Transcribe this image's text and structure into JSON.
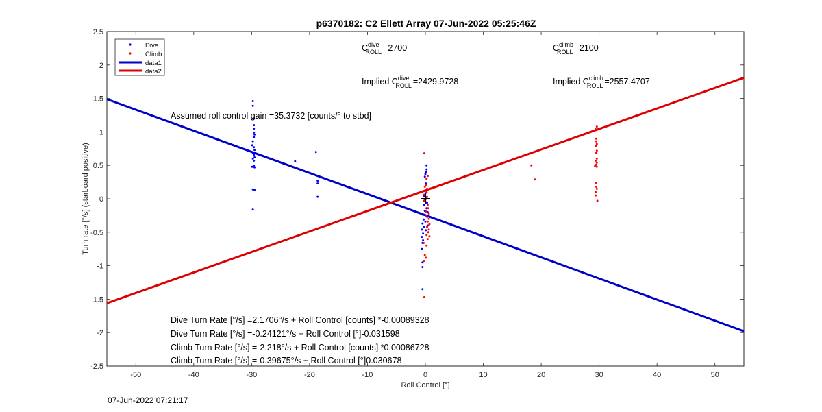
{
  "chart_data": {
    "type": "scatter",
    "title": "p6370182: C2 Ellett Array 07-Jun-2022 05:25:46Z",
    "xlabel": "Roll Control [°]",
    "ylabel": "Turn rate [°/s] (starboard positive)",
    "xlim": [
      -55,
      55
    ],
    "ylim": [
      -2.5,
      2.5
    ],
    "x_ticks": [
      -50,
      -40,
      -30,
      -20,
      -10,
      0,
      10,
      20,
      30,
      40,
      50
    ],
    "y_ticks": [
      -2.5,
      -2,
      -1.5,
      -1,
      -0.5,
      0,
      0.5,
      1,
      1.5,
      2,
      2.5
    ],
    "x_tick_labels": [
      "-50",
      "-40",
      "-30",
      "-20",
      "-10",
      "0",
      "10",
      "20",
      "30",
      "40",
      "50"
    ],
    "y_tick_labels": [
      "-2.5",
      "-2",
      "-1.5",
      "-1",
      "-0.5",
      "0",
      "0.5",
      "1",
      "1.5",
      "2",
      "2.5"
    ],
    "grid": false,
    "legend_placement": "top-left",
    "series": [
      {
        "name": "Dive",
        "kind": "points",
        "color": "#0000ff",
        "points": [
          [
            -29.8,
            1.46
          ],
          [
            -29.8,
            1.39
          ],
          [
            -29.6,
            1.2
          ],
          [
            -29.6,
            1.1
          ],
          [
            -29.6,
            1.05
          ],
          [
            -29.6,
            0.99
          ],
          [
            -29.5,
            0.96
          ],
          [
            -29.6,
            0.92
          ],
          [
            -29.8,
            0.86
          ],
          [
            -29.9,
            0.8
          ],
          [
            -29.6,
            0.77
          ],
          [
            -29.5,
            0.73
          ],
          [
            -29.8,
            0.69
          ],
          [
            -29.6,
            0.66
          ],
          [
            -29.5,
            0.62
          ],
          [
            -29.8,
            0.6
          ],
          [
            -29.6,
            0.57
          ],
          [
            -29.6,
            0.49
          ],
          [
            -29.9,
            0.48
          ],
          [
            -29.5,
            0.47
          ],
          [
            -29.8,
            0.14
          ],
          [
            -29.5,
            0.13
          ],
          [
            -29.8,
            -0.16
          ],
          [
            -22.5,
            0.56
          ],
          [
            -18.9,
            0.7
          ],
          [
            -18.6,
            0.27
          ],
          [
            -18.6,
            0.23
          ],
          [
            -18.6,
            0.03
          ],
          [
            0.2,
            0.5
          ],
          [
            0.2,
            0.44
          ],
          [
            0.1,
            0.4
          ],
          [
            0.0,
            0.37
          ],
          [
            -0.1,
            0.33
          ],
          [
            0.1,
            0.23
          ],
          [
            0.2,
            0.22
          ],
          [
            0.2,
            0.1
          ],
          [
            0.0,
            0.08
          ],
          [
            -0.2,
            0.04
          ],
          [
            0.1,
            0.02
          ],
          [
            0.2,
            0.0
          ],
          [
            -0.1,
            -0.02
          ],
          [
            0.1,
            -0.05
          ],
          [
            0.3,
            -0.06
          ],
          [
            -0.2,
            -0.09
          ],
          [
            0.2,
            -0.14
          ],
          [
            -0.1,
            -0.18
          ],
          [
            0.4,
            -0.2
          ],
          [
            -0.4,
            -0.24
          ],
          [
            0.3,
            -0.27
          ],
          [
            -0.3,
            -0.31
          ],
          [
            0.0,
            -0.34
          ],
          [
            -0.5,
            -0.37
          ],
          [
            0.4,
            -0.4
          ],
          [
            -0.2,
            -0.42
          ],
          [
            -0.6,
            -0.46
          ],
          [
            0.1,
            -0.47
          ],
          [
            -0.4,
            -0.52
          ],
          [
            -0.6,
            -0.57
          ],
          [
            -0.4,
            -0.62
          ],
          [
            -0.5,
            -0.66
          ],
          [
            -0.6,
            -0.75
          ],
          [
            -0.5,
            -0.95
          ],
          [
            -0.5,
            -1.02
          ],
          [
            -0.5,
            -1.35
          ]
        ]
      },
      {
        "name": "Climb",
        "kind": "points",
        "color": "#ff0000",
        "points": [
          [
            29.6,
            1.08
          ],
          [
            29.4,
            1.04
          ],
          [
            29.5,
            0.9
          ],
          [
            29.5,
            0.86
          ],
          [
            29.6,
            0.82
          ],
          [
            29.4,
            0.79
          ],
          [
            29.6,
            0.72
          ],
          [
            29.5,
            0.69
          ],
          [
            29.6,
            0.6
          ],
          [
            29.4,
            0.57
          ],
          [
            29.6,
            0.54
          ],
          [
            29.5,
            0.51
          ],
          [
            29.3,
            0.49
          ],
          [
            29.6,
            0.48
          ],
          [
            29.4,
            0.24
          ],
          [
            29.5,
            0.18
          ],
          [
            29.6,
            0.15
          ],
          [
            29.4,
            0.1
          ],
          [
            29.4,
            0.05
          ],
          [
            29.7,
            -0.03
          ],
          [
            18.3,
            0.5
          ],
          [
            18.9,
            0.29
          ],
          [
            -0.2,
            0.68
          ],
          [
            0.4,
            0.34
          ],
          [
            0.2,
            0.3
          ],
          [
            0.1,
            0.21
          ],
          [
            -0.1,
            0.18
          ],
          [
            0.3,
            0.15
          ],
          [
            0.2,
            0.1
          ],
          [
            -0.3,
            0.06
          ],
          [
            0.3,
            0.03
          ],
          [
            0.1,
            0.0
          ],
          [
            -0.2,
            -0.03
          ],
          [
            0.4,
            -0.09
          ],
          [
            0.5,
            -0.14
          ],
          [
            0.1,
            -0.19
          ],
          [
            0.6,
            -0.22
          ],
          [
            0.2,
            -0.26
          ],
          [
            0.6,
            -0.3
          ],
          [
            0.4,
            -0.34
          ],
          [
            0.7,
            -0.38
          ],
          [
            0.3,
            -0.42
          ],
          [
            0.6,
            -0.46
          ],
          [
            0.5,
            -0.5
          ],
          [
            0.2,
            -0.54
          ],
          [
            0.7,
            -0.56
          ],
          [
            0.4,
            -0.6
          ],
          [
            -0.3,
            -0.66
          ],
          [
            0.2,
            -0.7
          ],
          [
            -0.1,
            -0.84
          ],
          [
            0.1,
            -0.88
          ],
          [
            -0.3,
            -0.93
          ],
          [
            -0.2,
            -1.47
          ]
        ]
      },
      {
        "name": "data1",
        "kind": "line",
        "color": "#0000c8",
        "points": [
          [
            -55,
            1.49
          ],
          [
            55,
            -1.98
          ]
        ]
      },
      {
        "name": "data2",
        "kind": "line",
        "color": "#dc0000",
        "points": [
          [
            -55,
            -1.56
          ],
          [
            55,
            1.81
          ]
        ]
      }
    ],
    "marker": {
      "x": 0,
      "y": 0,
      "symbol": "+",
      "color": "#000000"
    },
    "annotations": {
      "dive_roll": {
        "base": "C",
        "sup": "dive",
        "sub": "ROLL",
        "value": "=2700"
      },
      "climb_roll": {
        "base": "C",
        "sup": "climb",
        "sub": "ROLL",
        "value": "=2100"
      },
      "implied_dive": {
        "prefix": "Implied ",
        "base": "C",
        "sup": "dive",
        "sub": "ROLL",
        "value": "=2429.9728"
      },
      "implied_climb": {
        "prefix": "Implied ",
        "base": "C",
        "sup": "climb",
        "sub": "ROLL",
        "value": "=2557.4707"
      },
      "gain": "Assumed roll control gain =35.3732 [counts/° to stbd]",
      "fit1": "Dive Turn Rate [°/s] =2.1706°/s + Roll Control [counts] *-0.00089328",
      "fit2": "Dive Turn Rate [°/s] =-0.24121°/s + Roll Control [°]-0.031598",
      "fit3": "Climb Turn Rate [°/s] =-2.218°/s + Roll Control [counts] *0.00086728",
      "fit4": "Climb Turn Rate [°/s] =-0.39675°/s + Roll Control [°]0.030678"
    }
  },
  "timestamp": "07-Jun-2022 07:21:17"
}
